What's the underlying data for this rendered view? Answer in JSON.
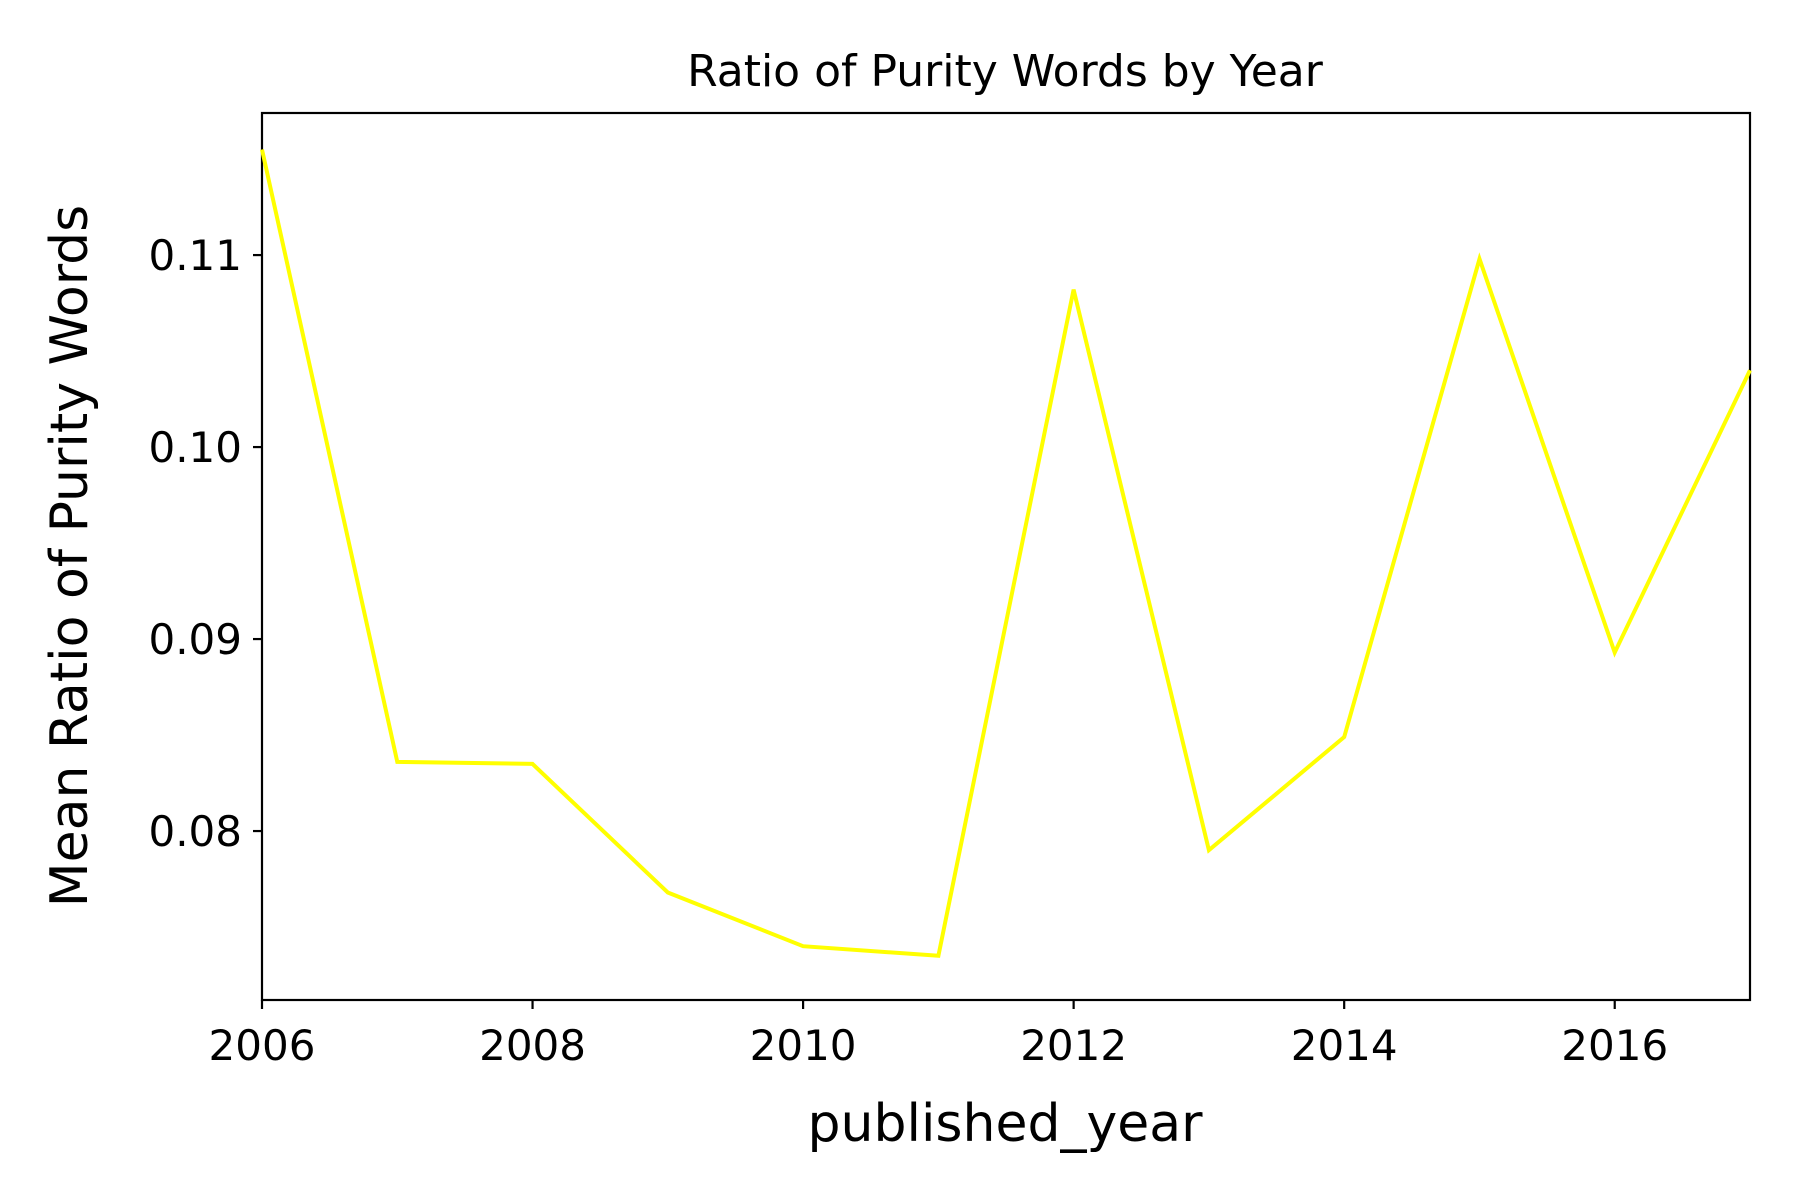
{
  "chart_data": {
    "type": "line",
    "title": "Ratio of Purity Words by Year",
    "xlabel": "published_year",
    "ylabel": "Mean Ratio of Purity Words",
    "xlim": [
      2006,
      2017
    ],
    "ylim": [
      0.0712,
      0.1174
    ],
    "xticks": [
      2006,
      2008,
      2010,
      2012,
      2014,
      2016
    ],
    "xtick_labels": [
      "2006",
      "2008",
      "2010",
      "2012",
      "2014",
      "2016"
    ],
    "yticks": [
      0.08,
      0.09,
      0.1,
      0.11
    ],
    "ytick_labels": [
      "0.08",
      "0.09",
      "0.10",
      "0.11"
    ],
    "grid": false,
    "line_color": "#ffff00",
    "x": [
      2006,
      2007,
      2008,
      2009,
      2010,
      2011,
      2012,
      2013,
      2014,
      2015,
      2016,
      2017
    ],
    "series": [
      {
        "values": [
          0.1155,
          0.0836,
          0.0835,
          0.0768,
          0.074,
          0.0735,
          0.1082,
          0.079,
          0.0849,
          0.1098,
          0.0893,
          0.104
        ]
      }
    ]
  }
}
